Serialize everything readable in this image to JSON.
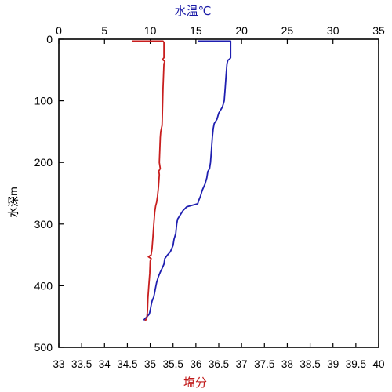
{
  "chart_data": {
    "type": "line",
    "top_axis": {
      "label": "水温℃",
      "range": [
        0,
        35
      ],
      "ticks": [
        0,
        5,
        10,
        15,
        20,
        25,
        30,
        35
      ],
      "tick_labels": [
        "0",
        "5",
        "10",
        "15",
        "20",
        "25",
        "30",
        "35"
      ],
      "color": "#1a1aa6"
    },
    "bottom_axis": {
      "label": "塩分",
      "range": [
        33,
        40
      ],
      "ticks": [
        33,
        33.5,
        34,
        34.5,
        35,
        35.5,
        36,
        36.5,
        37,
        37.5,
        38,
        38.5,
        39,
        39.5,
        40
      ],
      "tick_labels": [
        "33",
        "33.5",
        "34",
        "34.5",
        "35",
        "35.5",
        "36",
        "36.5",
        "37",
        "37.5",
        "38",
        "38.5",
        "39",
        "39.5",
        "40"
      ],
      "color": "#c01818"
    },
    "left_axis": {
      "label": "水深m",
      "range": [
        0,
        500
      ],
      "inverted": true,
      "ticks": [
        0,
        100,
        200,
        300,
        400,
        500
      ],
      "tick_labels": [
        "0",
        "100",
        "200",
        "300",
        "400",
        "500"
      ]
    },
    "grid": false,
    "series": [
      {
        "axis": "top",
        "color": "#1f1fb0",
        "points": [
          [
            15.2,
            3
          ],
          [
            18.8,
            3
          ],
          [
            18.8,
            8
          ],
          [
            18.8,
            30
          ],
          [
            18.7,
            32
          ],
          [
            18.5,
            34
          ],
          [
            18.4,
            40
          ],
          [
            18.3,
            60
          ],
          [
            18.2,
            80
          ],
          [
            18.1,
            100
          ],
          [
            17.9,
            110
          ],
          [
            17.5,
            120
          ],
          [
            17.3,
            130
          ],
          [
            17.0,
            137
          ],
          [
            16.9,
            145
          ],
          [
            16.8,
            160
          ],
          [
            16.7,
            180
          ],
          [
            16.6,
            200
          ],
          [
            16.5,
            210
          ],
          [
            16.3,
            215
          ],
          [
            16.2,
            225
          ],
          [
            16.0,
            235
          ],
          [
            15.7,
            245
          ],
          [
            15.5,
            255
          ],
          [
            15.3,
            262
          ],
          [
            15.2,
            267
          ],
          [
            14.0,
            272
          ],
          [
            13.6,
            278
          ],
          [
            13.3,
            285
          ],
          [
            13.0,
            292
          ],
          [
            12.9,
            300
          ],
          [
            12.8,
            315
          ],
          [
            12.6,
            325
          ],
          [
            12.5,
            335
          ],
          [
            12.2,
            345
          ],
          [
            11.9,
            350
          ],
          [
            11.6,
            356
          ],
          [
            11.5,
            365
          ],
          [
            11.3,
            372
          ],
          [
            11.1,
            378
          ],
          [
            10.9,
            385
          ],
          [
            10.7,
            395
          ],
          [
            10.6,
            402
          ],
          [
            10.5,
            410
          ],
          [
            10.4,
            418
          ],
          [
            10.2,
            425
          ],
          [
            10.1,
            432
          ],
          [
            10.0,
            440
          ],
          [
            9.9,
            446
          ],
          [
            9.6,
            451
          ],
          [
            9.4,
            454
          ],
          [
            9.3,
            456
          ]
        ]
      },
      {
        "axis": "bottom",
        "color": "#c81e1e",
        "points": [
          [
            34.6,
            3
          ],
          [
            35.28,
            3
          ],
          [
            35.3,
            5
          ],
          [
            35.3,
            30
          ],
          [
            35.27,
            33
          ],
          [
            35.32,
            36
          ],
          [
            35.3,
            40
          ],
          [
            35.29,
            60
          ],
          [
            35.28,
            80
          ],
          [
            35.27,
            110
          ],
          [
            35.26,
            140
          ],
          [
            35.23,
            150
          ],
          [
            35.22,
            160
          ],
          [
            35.21,
            180
          ],
          [
            35.2,
            200
          ],
          [
            35.22,
            210
          ],
          [
            35.19,
            214
          ],
          [
            35.2,
            220
          ],
          [
            35.18,
            240
          ],
          [
            35.16,
            255
          ],
          [
            35.14,
            265
          ],
          [
            35.12,
            270
          ],
          [
            35.1,
            280
          ],
          [
            35.08,
            300
          ],
          [
            35.06,
            320
          ],
          [
            35.04,
            340
          ],
          [
            35.02,
            350
          ],
          [
            34.96,
            353
          ],
          [
            35.02,
            356
          ],
          [
            35.0,
            360
          ],
          [
            34.99,
            380
          ],
          [
            34.97,
            400
          ],
          [
            34.95,
            420
          ],
          [
            34.94,
            440
          ],
          [
            34.93,
            450
          ],
          [
            34.92,
            455
          ],
          [
            34.88,
            456
          ]
        ]
      }
    ]
  }
}
